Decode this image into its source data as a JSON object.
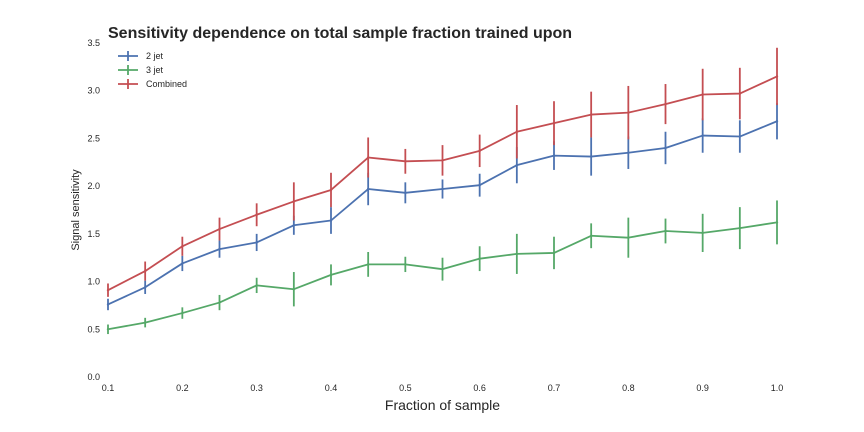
{
  "chart_data": {
    "type": "line",
    "title": "Sensitivity dependence on total sample fraction trained upon",
    "xlabel": "Fraction of sample",
    "ylabel": "Signal sensitivity",
    "xlim": [
      0.1,
      1.0
    ],
    "ylim": [
      0.0,
      3.5
    ],
    "xticks": [
      "0.1",
      "0.2",
      "0.3",
      "0.4",
      "0.5",
      "0.6",
      "0.7",
      "0.8",
      "0.9",
      "1.0"
    ],
    "yticks": [
      "0.0",
      "0.5",
      "1.0",
      "1.5",
      "2.0",
      "2.5",
      "3.0",
      "3.5"
    ],
    "grid": false,
    "legend_position": "top-left",
    "x": [
      0.1,
      0.15,
      0.2,
      0.25,
      0.3,
      0.35,
      0.4,
      0.45,
      0.5,
      0.55,
      0.6,
      0.65,
      0.7,
      0.75,
      0.8,
      0.85,
      0.9,
      0.95,
      1.0
    ],
    "series": [
      {
        "name": "2 jet",
        "color": "#4c72b0",
        "values": [
          0.76,
          0.94,
          1.19,
          1.34,
          1.41,
          1.59,
          1.64,
          1.97,
          1.93,
          1.97,
          2.01,
          2.22,
          2.32,
          2.31,
          2.35,
          2.4,
          2.53,
          2.52,
          2.68
        ],
        "errors": [
          0.06,
          0.07,
          0.08,
          0.09,
          0.09,
          0.1,
          0.14,
          0.17,
          0.11,
          0.1,
          0.12,
          0.19,
          0.15,
          0.2,
          0.17,
          0.17,
          0.18,
          0.17,
          0.19
        ]
      },
      {
        "name": "3 jet",
        "color": "#55a868",
        "values": [
          0.5,
          0.57,
          0.67,
          0.78,
          0.96,
          0.92,
          1.07,
          1.18,
          1.18,
          1.13,
          1.24,
          1.29,
          1.3,
          1.48,
          1.46,
          1.53,
          1.51,
          1.56,
          1.62
        ],
        "errors": [
          0.05,
          0.05,
          0.06,
          0.08,
          0.08,
          0.18,
          0.11,
          0.13,
          0.08,
          0.12,
          0.13,
          0.21,
          0.17,
          0.13,
          0.21,
          0.13,
          0.2,
          0.22,
          0.23
        ]
      },
      {
        "name": "Combined",
        "color": "#c44e52",
        "values": [
          0.91,
          1.11,
          1.37,
          1.55,
          1.7,
          1.84,
          1.96,
          2.3,
          2.26,
          2.27,
          2.37,
          2.57,
          2.66,
          2.75,
          2.77,
          2.86,
          2.96,
          2.97,
          3.15
        ],
        "errors": [
          0.07,
          0.1,
          0.1,
          0.12,
          0.12,
          0.2,
          0.18,
          0.21,
          0.13,
          0.16,
          0.17,
          0.28,
          0.23,
          0.24,
          0.28,
          0.21,
          0.27,
          0.27,
          0.3
        ]
      }
    ]
  }
}
